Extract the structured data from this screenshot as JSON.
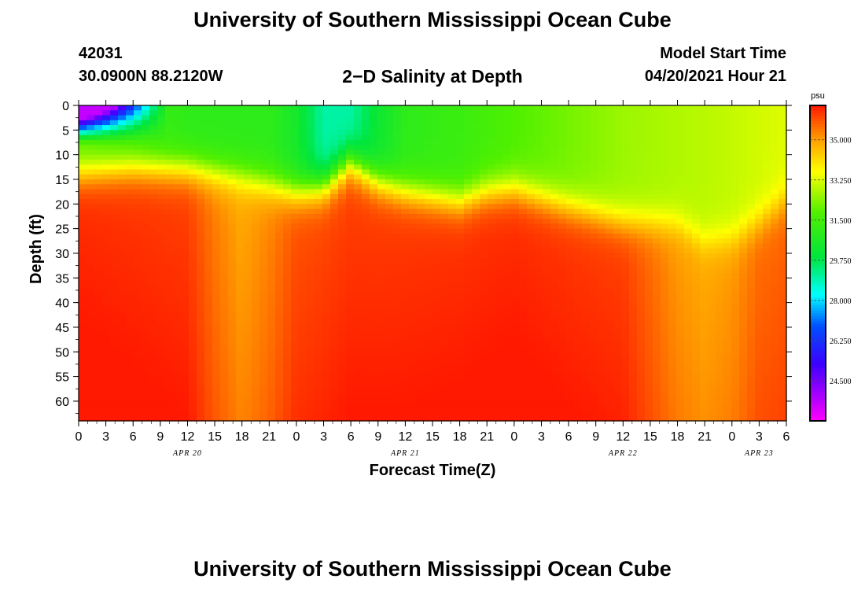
{
  "header": {
    "title": "University of Southern Mississippi Ocean Cube",
    "station_id": "42031",
    "station_coords": "30.0900N  88.2120W",
    "model_start_label": "Model Start Time",
    "model_start_value": "04/20/2021 Hour 21"
  },
  "footer": {
    "title": "University of Southern Mississippi Ocean Cube"
  },
  "chart_data": {
    "type": "heatmap",
    "title": "2−D Salinity at Depth",
    "xlabel": "Forecast Time(Z)",
    "ylabel": "Depth (ft)",
    "x_ticks": [
      "0",
      "3",
      "6",
      "9",
      "12",
      "15",
      "18",
      "21",
      "0",
      "3",
      "6",
      "9",
      "12",
      "15",
      "18",
      "21",
      "0",
      "3",
      "6",
      "9",
      "12",
      "15",
      "18",
      "21",
      "0",
      "3",
      "6"
    ],
    "x_range_hours": [
      0,
      78
    ],
    "date_labels": [
      {
        "label": "APR 20",
        "hour": 12
      },
      {
        "label": "APR 21",
        "hour": 36
      },
      {
        "label": "APR 22",
        "hour": 60
      },
      {
        "label": "APR 23",
        "hour": 75
      }
    ],
    "y_ticks": [
      0,
      5,
      10,
      15,
      20,
      25,
      30,
      35,
      40,
      45,
      50,
      55,
      60
    ],
    "y_range": [
      0,
      64
    ],
    "colorbar": {
      "unit": "psu",
      "min": 22.75,
      "max": 36.5,
      "labels": [
        "35.000",
        "33.250",
        "31.500",
        "29.750",
        "28.000",
        "26.250",
        "24.500"
      ],
      "label_values": [
        35.0,
        33.25,
        31.5,
        29.75,
        28.0,
        26.25,
        24.5
      ]
    },
    "interface_depth_ft": [
      [
        0,
        13.5
      ],
      [
        6,
        12.5
      ],
      [
        12,
        12.8
      ],
      [
        18,
        14.5
      ],
      [
        21,
        16.0
      ],
      [
        24,
        17.5
      ],
      [
        27,
        16.5
      ],
      [
        30,
        11.5
      ],
      [
        33,
        15.5
      ],
      [
        36,
        17.5
      ],
      [
        42,
        19.5
      ],
      [
        45,
        17.5
      ],
      [
        48,
        17.0
      ],
      [
        54,
        20.5
      ],
      [
        60,
        23.5
      ],
      [
        66,
        24.0
      ],
      [
        69,
        27.5
      ],
      [
        72,
        27.0
      ],
      [
        75,
        23.5
      ],
      [
        78,
        19.0
      ]
    ],
    "surface_salinity_psu": [
      [
        0,
        31.8
      ],
      [
        9,
        31.2
      ],
      [
        12,
        31.0
      ],
      [
        21,
        31.0
      ],
      [
        24,
        30.4
      ],
      [
        27,
        29.0
      ],
      [
        30,
        29.0
      ],
      [
        33,
        30.2
      ],
      [
        36,
        31.0
      ],
      [
        42,
        31.3
      ],
      [
        48,
        31.8
      ],
      [
        54,
        32.2
      ],
      [
        60,
        32.6
      ],
      [
        66,
        32.8
      ],
      [
        72,
        33.0
      ],
      [
        78,
        33.3
      ]
    ],
    "deep_salinity_psu": [
      [
        0,
        36.2
      ],
      [
        12,
        36.0
      ],
      [
        15,
        35.3
      ],
      [
        18,
        34.8
      ],
      [
        21,
        35.2
      ],
      [
        24,
        35.8
      ],
      [
        30,
        36.0
      ],
      [
        48,
        36.2
      ],
      [
        60,
        36.0
      ],
      [
        63,
        35.5
      ],
      [
        66,
        35.0
      ],
      [
        69,
        34.8
      ],
      [
        72,
        35.0
      ],
      [
        75,
        35.5
      ],
      [
        78,
        35.6
      ]
    ],
    "low_salinity_patch": {
      "hour_max": 10,
      "depth_max_ft": 6,
      "min_psu": 23.5
    }
  }
}
